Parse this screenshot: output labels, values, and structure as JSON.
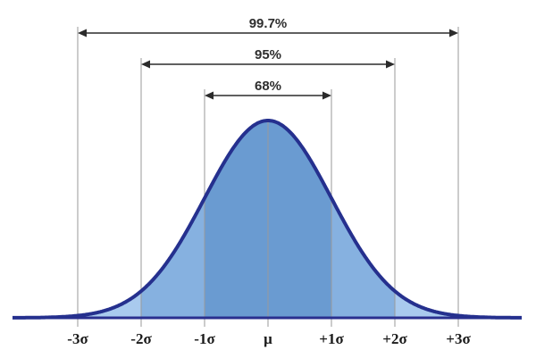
{
  "colors": {
    "band_1sigma": "#6a9bd1",
    "band_2sigma": "#86b1e0",
    "band_3sigma": "#a9caee",
    "curve": "#25308e",
    "guide_line": "#9a9a9a",
    "arrow": "#2b2b2b"
  },
  "intervals": [
    {
      "label": "68%",
      "from": "-1σ",
      "to": "+1σ",
      "sigma": 1
    },
    {
      "label": "95%",
      "from": "-2σ",
      "to": "+2σ",
      "sigma": 2
    },
    {
      "label": "99.7%",
      "from": "-3σ",
      "to": "+3σ",
      "sigma": 3
    }
  ],
  "axis_labels": [
    "-3σ",
    "-2σ",
    "-1σ",
    "μ",
    "+1σ",
    "+2σ",
    "+3σ"
  ]
}
